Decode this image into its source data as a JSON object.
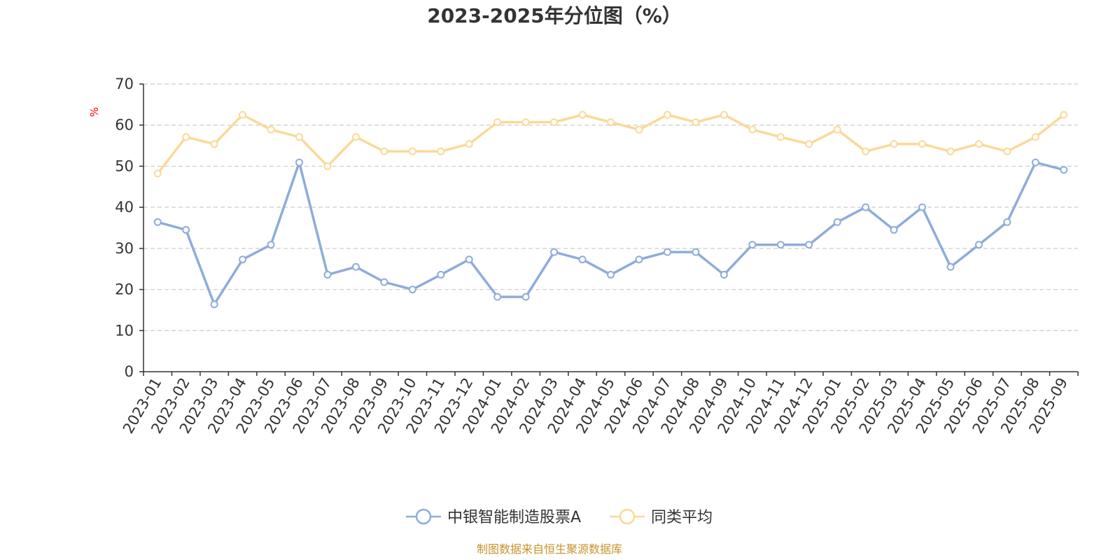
{
  "chart_data": {
    "type": "line",
    "title": "2023-2025年分位图（%）",
    "ylabel": "%",
    "ylim": [
      0,
      70
    ],
    "yticks": [
      0,
      10,
      20,
      30,
      40,
      50,
      60,
      70
    ],
    "categories": [
      "2023-01",
      "2023-02",
      "2023-03",
      "2023-04",
      "2023-05",
      "2023-06",
      "2023-07",
      "2023-08",
      "2023-09",
      "2023-10",
      "2023-11",
      "2023-12",
      "2024-01",
      "2024-02",
      "2024-03",
      "2024-04",
      "2024-05",
      "2024-06",
      "2024-07",
      "2024-08",
      "2024-09",
      "2024-10",
      "2024-11",
      "2024-12",
      "2025-01",
      "2025-02",
      "2025-03",
      "2025-04",
      "2025-05",
      "2025-06",
      "2025-07",
      "2025-08",
      "2025-09"
    ],
    "series": [
      {
        "name": "中银智能制造股票A",
        "color": "#8eacdb",
        "values": [
          36.4,
          34.5,
          16.4,
          27.3,
          30.9,
          50.9,
          23.6,
          25.5,
          21.8,
          20.0,
          23.6,
          27.3,
          18.2,
          18.2,
          29.1,
          27.3,
          23.6,
          27.3,
          29.1,
          29.1,
          23.6,
          30.9,
          30.9,
          30.9,
          36.4,
          40.0,
          34.5,
          40.0,
          25.5,
          30.9,
          36.4,
          50.9,
          49.1
        ]
      },
      {
        "name": "同类平均",
        "color": "#fad998",
        "values": [
          48.2,
          57.1,
          55.4,
          62.5,
          58.9,
          57.1,
          50.0,
          57.1,
          53.6,
          53.6,
          53.6,
          55.4,
          60.7,
          60.7,
          60.7,
          62.5,
          60.7,
          58.9,
          62.5,
          60.7,
          62.5,
          58.9,
          57.1,
          55.4,
          58.9,
          53.6,
          55.4,
          55.4,
          53.6,
          55.4,
          53.6,
          57.1,
          62.5
        ]
      }
    ],
    "grid": true,
    "legend_position": "bottom-center",
    "unit_color": "#ff0000"
  },
  "source": {
    "text": "制图数据来自恒生聚源数据库",
    "color": "#c8922a"
  }
}
